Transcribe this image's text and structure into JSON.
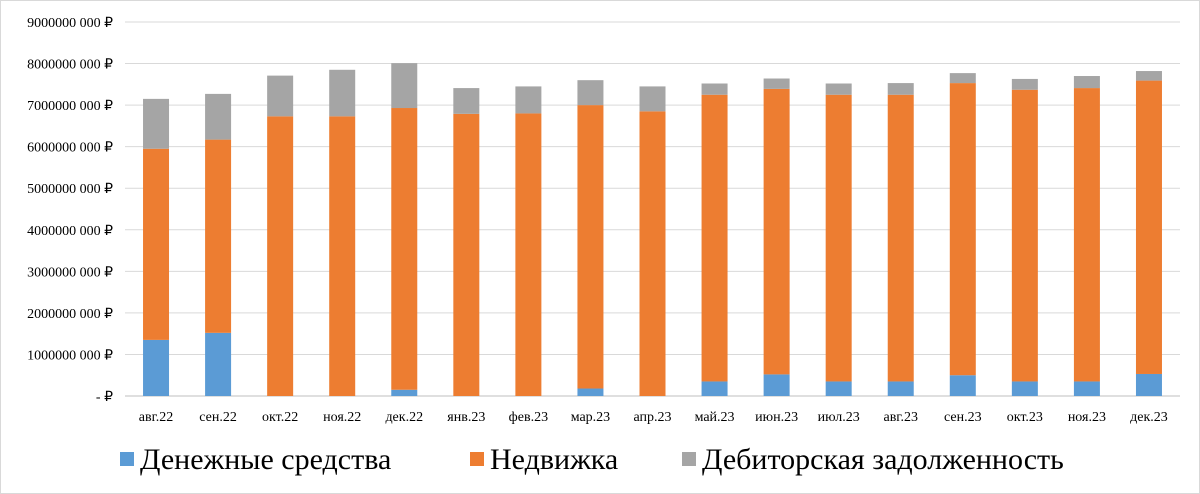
{
  "chart_data": {
    "type": "bar",
    "stacked": true,
    "title": "",
    "xlabel": "",
    "ylabel": "",
    "ylim": [
      0,
      9000000
    ],
    "grid": true,
    "legend_position": "bottom",
    "y_ticks": [
      {
        "value": 0,
        "label": "-  ₽"
      },
      {
        "value": 1000000,
        "label": "1000000 000 ₽"
      },
      {
        "value": 2000000,
        "label": "2000000 000 ₽"
      },
      {
        "value": 3000000,
        "label": "3000000 000 ₽"
      },
      {
        "value": 4000000,
        "label": "4000000 000 ₽"
      },
      {
        "value": 5000000,
        "label": "5000000 000 ₽"
      },
      {
        "value": 6000000,
        "label": "6000000 000 ₽"
      },
      {
        "value": 7000000,
        "label": "7000000 000 ₽"
      },
      {
        "value": 8000000,
        "label": "8000000 000 ₽"
      },
      {
        "value": 9000000,
        "label": "9000000 000 ₽"
      }
    ],
    "categories": [
      "авг.22",
      "сен.22",
      "окт.22",
      "ноя.22",
      "дек.22",
      "янв.23",
      "фев.23",
      "мар.23",
      "апр.23",
      "май.23",
      "июн.23",
      "июл.23",
      "авг.23",
      "сен.23",
      "окт.23",
      "ноя.23",
      "дек.23"
    ],
    "series": [
      {
        "name": "Денежные средства",
        "color": "#5b9bd5",
        "values": [
          1350000,
          1520000,
          0,
          0,
          150000,
          0,
          0,
          180000,
          0,
          350000,
          520000,
          350000,
          350000,
          500000,
          350000,
          350000,
          530000
        ]
      },
      {
        "name": "Недвижка",
        "color": "#ed7d31",
        "values": [
          4600000,
          4650000,
          6730000,
          6730000,
          6780000,
          6790000,
          6800000,
          6820000,
          6850000,
          6900000,
          6870000,
          6900000,
          6900000,
          7030000,
          7020000,
          7060000,
          7060000
        ]
      },
      {
        "name": "Дебиторская задолженность",
        "color": "#a5a5a5",
        "values": [
          1200000,
          1100000,
          980000,
          1120000,
          1080000,
          620000,
          650000,
          600000,
          600000,
          270000,
          250000,
          270000,
          280000,
          240000,
          260000,
          290000,
          230000
        ]
      }
    ]
  }
}
